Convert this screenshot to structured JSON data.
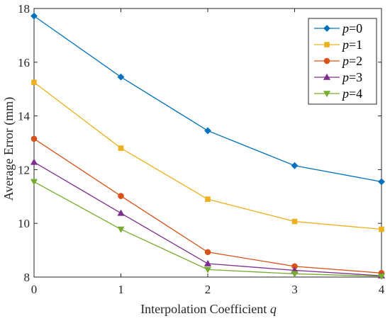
{
  "chart_data": {
    "type": "line",
    "xlabel": "Interpolation Coefficient",
    "xlabel_var": "q",
    "ylabel": "Average Error (mm)",
    "x": [
      0,
      1,
      2,
      3,
      4
    ],
    "xlim": [
      0,
      4
    ],
    "ylim": [
      8,
      18
    ],
    "xticks": [
      "0",
      "1",
      "2",
      "3",
      "4"
    ],
    "yticks": [
      "8",
      "10",
      "12",
      "14",
      "16",
      "18"
    ],
    "grid": false,
    "legend_position": "top-right",
    "series": [
      {
        "name": "p=0",
        "var": "p",
        "eq": "=0",
        "color": "#0072BD",
        "marker": "diamond",
        "values": [
          17.72,
          15.45,
          13.45,
          12.15,
          11.55
        ]
      },
      {
        "name": "p=1",
        "var": "p",
        "eq": "=1",
        "color": "#EDB120",
        "marker": "square",
        "values": [
          15.25,
          12.8,
          10.9,
          10.07,
          9.78
        ]
      },
      {
        "name": "p=2",
        "var": "p",
        "eq": "=2",
        "color": "#D95319",
        "marker": "circle",
        "values": [
          13.15,
          11.02,
          8.93,
          8.4,
          8.15
        ]
      },
      {
        "name": "p=3",
        "var": "p",
        "eq": "=3",
        "color": "#7E2F8E",
        "marker": "triangle-up",
        "values": [
          12.28,
          10.38,
          8.5,
          8.25,
          8.05
        ]
      },
      {
        "name": "p=4",
        "var": "p",
        "eq": "=4",
        "color": "#77AC30",
        "marker": "triangle-down",
        "values": [
          11.55,
          9.78,
          8.28,
          8.12,
          8.03
        ]
      }
    ]
  }
}
